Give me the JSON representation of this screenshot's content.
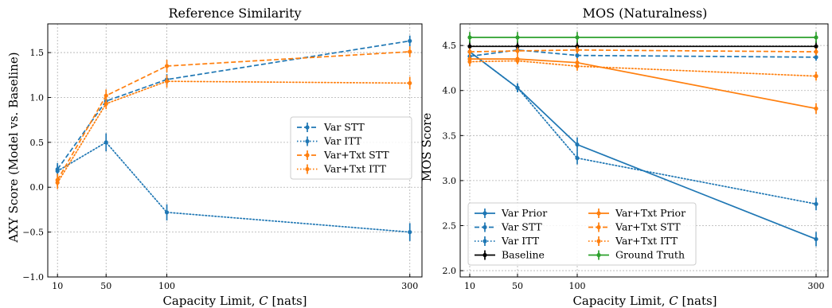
{
  "chart_data": [
    {
      "type": "line",
      "title": "Reference Similarity",
      "xlabel_prefix": "Capacity Limit, ",
      "xlabel_italic": "C",
      "xlabel_suffix": " [nats]",
      "ylabel": "AXY Score (Model vs. Baseline)",
      "x": [
        10,
        50,
        100,
        300
      ],
      "xticks": [
        "10",
        "50",
        "100",
        "300"
      ],
      "xlim": [
        2,
        310
      ],
      "ylim": [
        -1.0,
        1.82
      ],
      "yticks": [
        "−1.0",
        "−0.5",
        "0.0",
        "0.5",
        "1.0",
        "1.5"
      ],
      "ytick_values": [
        -1.0,
        -0.5,
        0.0,
        0.5,
        1.0,
        1.5
      ],
      "grid": true,
      "legend_placement": "center-right",
      "series": [
        {
          "name": "Var STT",
          "color": "#1f77b4",
          "style": "dashed",
          "values": [
            0.2,
            0.96,
            1.2,
            1.63
          ],
          "err": [
            0.07,
            0.06,
            0.06,
            0.06
          ]
        },
        {
          "name": "Var ITT",
          "color": "#1f77b4",
          "style": "dotted",
          "values": [
            0.18,
            0.5,
            -0.28,
            -0.5
          ],
          "err": [
            0.07,
            0.1,
            0.09,
            0.1
          ]
        },
        {
          "name": "Var+Txt STT",
          "color": "#ff7f0e",
          "style": "dashed",
          "values": [
            0.08,
            1.02,
            1.35,
            1.51
          ],
          "err": [
            0.07,
            0.07,
            0.07,
            0.06
          ]
        },
        {
          "name": "Var+Txt ITT",
          "color": "#ff7f0e",
          "style": "dotted",
          "values": [
            0.05,
            0.93,
            1.18,
            1.16
          ],
          "err": [
            0.07,
            0.06,
            0.07,
            0.07
          ]
        }
      ]
    },
    {
      "type": "line",
      "title": "MOS (Naturalness)",
      "xlabel_prefix": "Capacity Limit, ",
      "xlabel_italic": "C",
      "xlabel_suffix": " [nats]",
      "ylabel": "MOS Score",
      "x": [
        10,
        50,
        100,
        300
      ],
      "xticks": [
        "10",
        "50",
        "100",
        "300"
      ],
      "xlim": [
        2,
        310
      ],
      "ylim": [
        1.93,
        4.74
      ],
      "yticks": [
        "2.0",
        "2.5",
        "3.0",
        "3.5",
        "4.0",
        "4.5"
      ],
      "ytick_values": [
        2.0,
        2.5,
        3.0,
        3.5,
        4.0,
        4.5
      ],
      "grid": true,
      "legend_placement": "lower-left",
      "series": [
        {
          "name": "Var Prior",
          "color": "#1f77b4",
          "style": "solid",
          "values": [
            4.43,
            4.03,
            3.4,
            2.35
          ],
          "err": [
            0.05,
            0.05,
            0.08,
            0.08
          ]
        },
        {
          "name": "Var STT",
          "color": "#1f77b4",
          "style": "dashed",
          "values": [
            4.38,
            4.45,
            4.39,
            4.37
          ],
          "err": [
            0.04,
            0.04,
            0.04,
            0.04
          ]
        },
        {
          "name": "Var ITT",
          "color": "#1f77b4",
          "style": "dotted",
          "values": [
            4.43,
            4.03,
            3.25,
            2.74
          ],
          "err": [
            0.05,
            0.05,
            0.07,
            0.07
          ]
        },
        {
          "name": "Baseline",
          "color": "#000000",
          "style": "solid",
          "values": [
            4.49,
            4.49,
            4.49,
            4.49
          ],
          "err": [
            0.06,
            0.06,
            0.06,
            0.06
          ]
        },
        {
          "name": "Var+Txt Prior",
          "color": "#ff7f0e",
          "style": "solid",
          "values": [
            4.35,
            4.35,
            4.31,
            3.8
          ],
          "err": [
            0.05,
            0.05,
            0.05,
            0.06
          ]
        },
        {
          "name": "Var+Txt STT",
          "color": "#ff7f0e",
          "style": "dashed",
          "values": [
            4.43,
            4.44,
            4.45,
            4.43
          ],
          "err": [
            0.04,
            0.04,
            0.04,
            0.04
          ]
        },
        {
          "name": "Var+Txt ITT",
          "color": "#ff7f0e",
          "style": "dotted",
          "values": [
            4.32,
            4.33,
            4.27,
            4.16
          ],
          "err": [
            0.05,
            0.04,
            0.05,
            0.05
          ]
        },
        {
          "name": "Ground Truth",
          "color": "#2ca02c",
          "style": "solid",
          "values": [
            4.59,
            4.59,
            4.59,
            4.59
          ],
          "err": [
            0.06,
            0.06,
            0.06,
            0.06
          ]
        }
      ]
    }
  ]
}
